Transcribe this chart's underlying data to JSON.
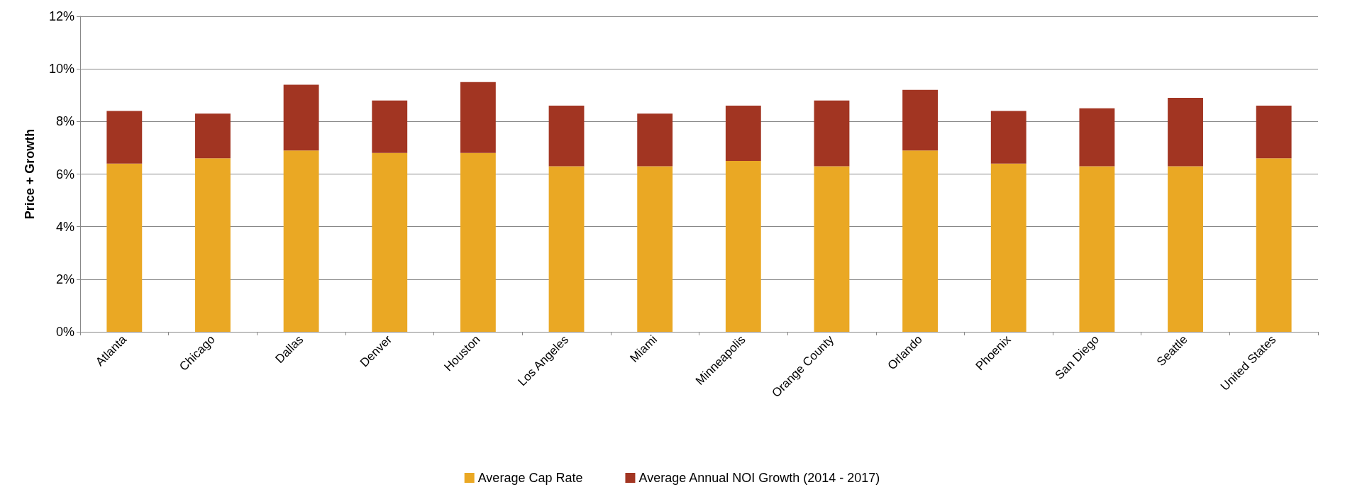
{
  "chart_data": {
    "type": "bar",
    "stacked": true,
    "ylabel": "Price + Growth",
    "categories": [
      "Atlanta",
      "Chicago",
      "Dallas",
      "Denver",
      "Houston",
      "Los Angeles",
      "Miami",
      "Minneapolis",
      "Orange County",
      "Orlando",
      "Phoenix",
      "San Diego",
      "Seattle",
      "United States"
    ],
    "series": [
      {
        "name": "Average Cap Rate",
        "color": "#eaa824",
        "values": [
          6.4,
          6.6,
          6.9,
          6.8,
          6.8,
          6.3,
          6.3,
          6.5,
          6.3,
          6.9,
          6.4,
          6.3,
          6.3,
          6.6
        ]
      },
      {
        "name": "Average Annual NOI Growth (2014 - 2017)",
        "color": "#a23522",
        "values": [
          2.0,
          1.7,
          2.5,
          2.0,
          2.7,
          2.3,
          2.0,
          2.1,
          2.5,
          2.3,
          2.0,
          2.2,
          2.6,
          2.0
        ]
      }
    ],
    "ylim": [
      0,
      12
    ],
    "yticks": [
      {
        "value": 0,
        "label": "0%"
      },
      {
        "value": 2,
        "label": "2%"
      },
      {
        "value": 4,
        "label": "4%"
      },
      {
        "value": 6,
        "label": "6%"
      },
      {
        "value": 8,
        "label": "8%"
      },
      {
        "value": 10,
        "label": "10%"
      },
      {
        "value": 12,
        "label": "12%"
      }
    ],
    "grid": "y",
    "legend": "bottom"
  }
}
